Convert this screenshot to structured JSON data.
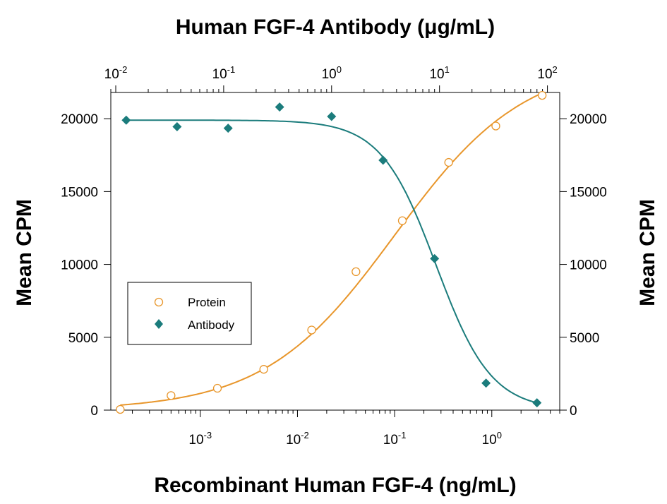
{
  "chart_data": {
    "type": "scatter",
    "title": "Human FGF-4 Antibody (μg/mL)",
    "xlabel": "Recombinant Human FGF-4 (ng/mL)",
    "ylabel": "Mean CPM",
    "ylabel_right": "Mean CPM",
    "xscale": "log",
    "xlim": [
      0.00012,
      5
    ],
    "x2scale": "log",
    "x2lim": [
      0.009,
      130
    ],
    "ylim": [
      0,
      21800
    ],
    "y_ticks": [
      0,
      5000,
      10000,
      15000,
      20000
    ],
    "x_ticks": [
      {
        "value": 0.001,
        "base": "10",
        "exp": "-3"
      },
      {
        "value": 0.01,
        "base": "10",
        "exp": "-2"
      },
      {
        "value": 0.1,
        "base": "10",
        "exp": "-1"
      },
      {
        "value": 1,
        "base": "10",
        "exp": "0"
      }
    ],
    "x2_ticks": [
      {
        "value": 0.01,
        "base": "10",
        "exp": "-2"
      },
      {
        "value": 0.1,
        "base": "10",
        "exp": "-1"
      },
      {
        "value": 1,
        "base": "10",
        "exp": "0"
      },
      {
        "value": 10,
        "base": "10",
        "exp": "1"
      },
      {
        "value": 100,
        "base": "10",
        "exp": "2"
      }
    ],
    "grid": false,
    "legend_position": "center-left",
    "series": [
      {
        "name": "Protein",
        "axis": "bottom",
        "marker": "open-circle",
        "color": "#E8962B",
        "points": [
          {
            "x": 0.00015,
            "y": 50
          },
          {
            "x": 0.0005,
            "y": 1000
          },
          {
            "x": 0.0015,
            "y": 1500
          },
          {
            "x": 0.0045,
            "y": 2800
          },
          {
            "x": 0.014,
            "y": 5500
          },
          {
            "x": 0.04,
            "y": 9500
          },
          {
            "x": 0.12,
            "y": 13000
          },
          {
            "x": 0.36,
            "y": 17000
          },
          {
            "x": 1.1,
            "y": 19500
          },
          {
            "x": 3.3,
            "y": 21600
          }
        ],
        "fit": {
          "bottom": 0,
          "top": 24000,
          "ec50": 0.1,
          "hill": 0.65
        }
      },
      {
        "name": "Antibody",
        "axis": "top",
        "marker": "filled-diamond",
        "color": "#1B7C7C",
        "points": [
          {
            "x": 0.0125,
            "y": 19900
          },
          {
            "x": 0.037,
            "y": 19450
          },
          {
            "x": 0.11,
            "y": 19350
          },
          {
            "x": 0.33,
            "y": 20800
          },
          {
            "x": 1.0,
            "y": 20150
          },
          {
            "x": 3.0,
            "y": 17150
          },
          {
            "x": 9.0,
            "y": 10400
          },
          {
            "x": 27,
            "y": 1850
          },
          {
            "x": 80,
            "y": 500
          }
        ],
        "fit": {
          "bottom": 0,
          "top": 19900,
          "ec50": 9.3,
          "hill": 1.7
        }
      }
    ]
  }
}
